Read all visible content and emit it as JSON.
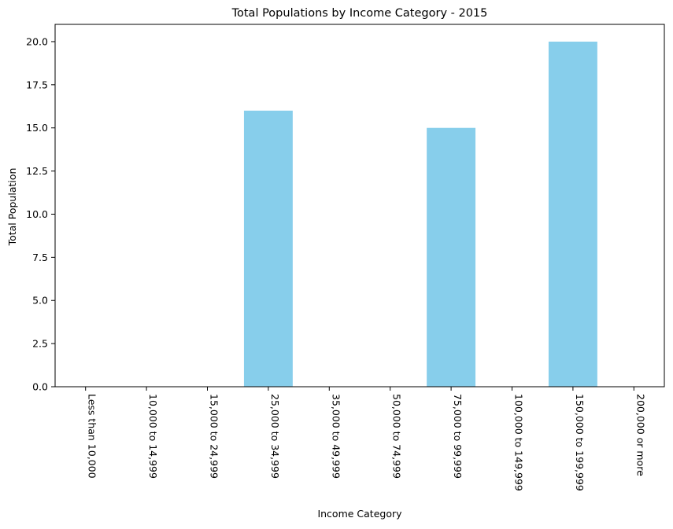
{
  "chart_data": {
    "type": "bar",
    "title": "Total Populations by Income Category - 2015",
    "xlabel": "Income Category",
    "ylabel": "Total Population",
    "categories": [
      "Less than 10,000",
      "10,000 to 14,999",
      "15,000 to 24,999",
      "25,000 to 34,999",
      "35,000 to 49,999",
      "50,000 to 74,999",
      "75,000 to 99,999",
      "100,000 to 149,999",
      "150,000 to 199,999",
      "200,000 or more"
    ],
    "values": [
      0,
      0,
      0,
      16,
      0,
      0,
      15,
      0,
      20,
      0
    ],
    "ylim": [
      0,
      21
    ],
    "yticks": [
      0.0,
      2.5,
      5.0,
      7.5,
      10.0,
      12.5,
      15.0,
      17.5,
      20.0
    ],
    "ytick_labels": [
      "0.0",
      "2.5",
      "5.0",
      "7.5",
      "10.0",
      "12.5",
      "15.0",
      "17.5",
      "20.0"
    ],
    "bar_color": "#87ceeb",
    "grid": false,
    "legend": "none"
  }
}
